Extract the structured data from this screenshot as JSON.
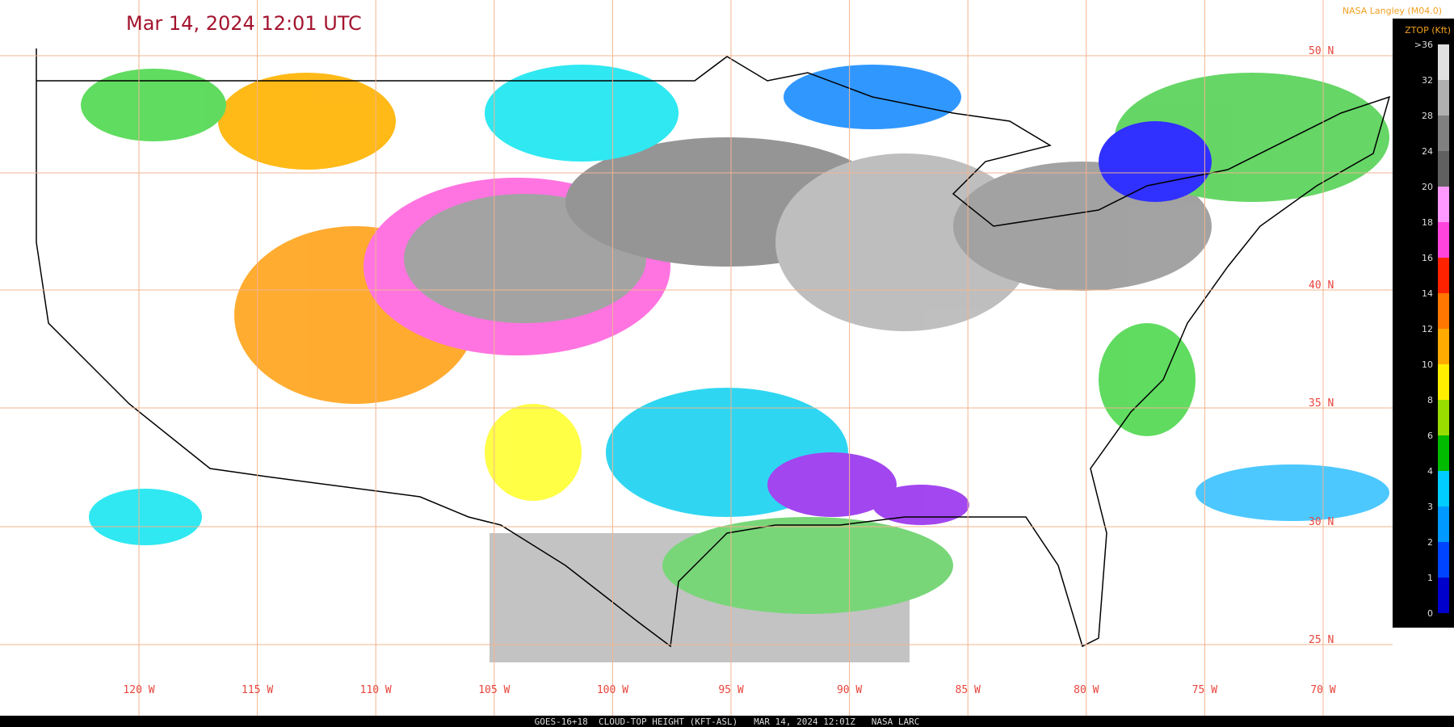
{
  "header": {
    "title": "Mar 14, 2024 12:01 UTC",
    "credit": "NASA Langley (M04.0)"
  },
  "legend": {
    "title": "ZTOP (Kft)",
    "ticks": [
      ">36",
      "32",
      "28",
      "24",
      "20",
      "18",
      "16",
      "14",
      "12",
      "10",
      "8",
      "6",
      "4",
      "3",
      "2",
      "1",
      "0"
    ]
  },
  "map": {
    "latitude_labels": [
      "50 N",
      "40 N",
      "35 N",
      "30 N",
      "25 N"
    ],
    "longitude_labels": [
      "120 W",
      "115 W",
      "110 W",
      "105 W",
      "100 W",
      "95 W",
      "90 W",
      "85 W",
      "80 W",
      "75 W",
      "70 W"
    ]
  },
  "footer": "GOES-16+18  CLOUD-TOP HEIGHT (KFT-ASL)   MAR 14, 2024 12:01Z   NASA LARC"
}
